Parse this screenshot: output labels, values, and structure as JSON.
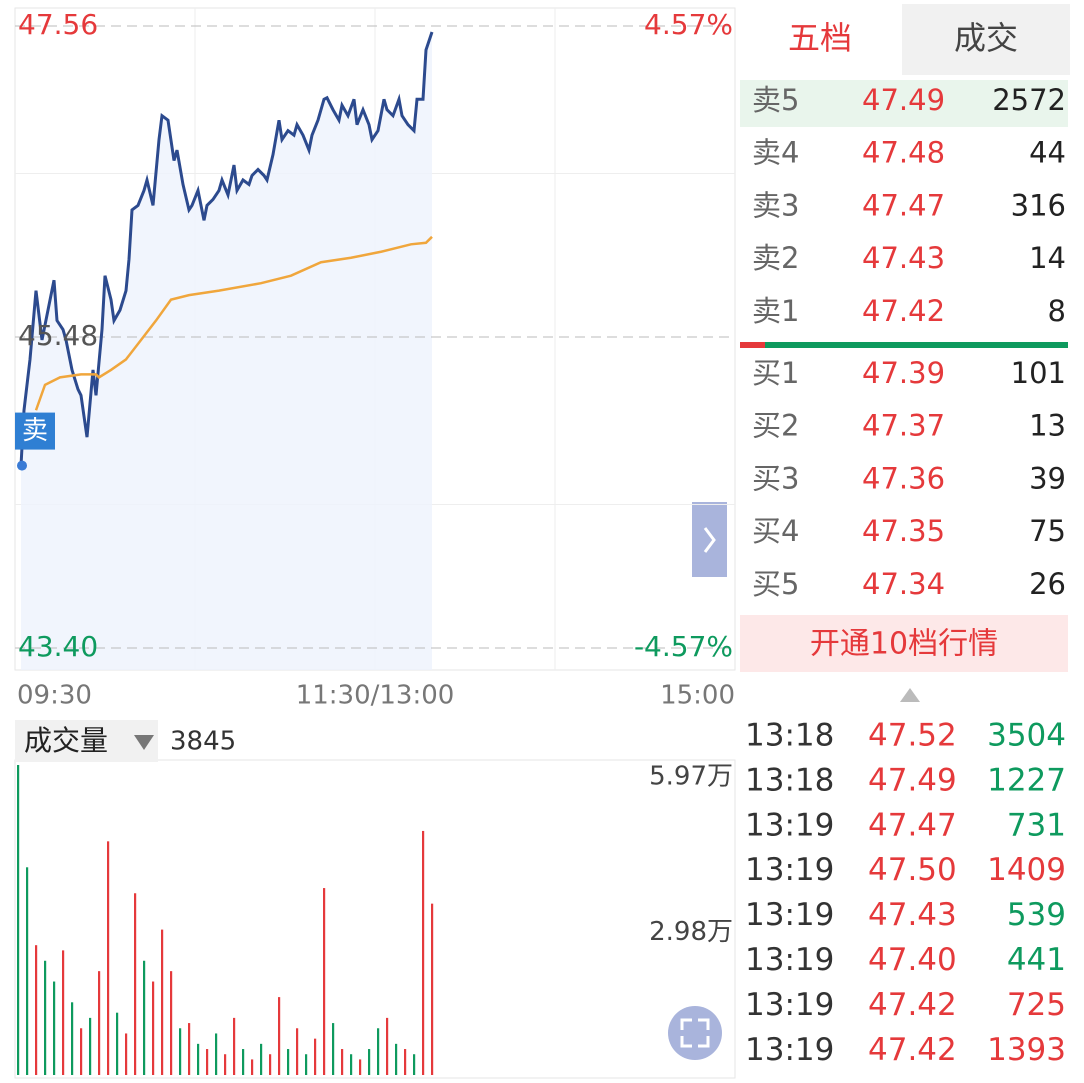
{
  "chart_data": [
    {
      "type": "line",
      "xlim": [
        0,
        240
      ],
      "xticks": [
        {
          "value": 0,
          "label": "09:30"
        },
        {
          "value": 120,
          "label": "11:30/13:00"
        },
        {
          "value": 240,
          "label": "15:00"
        }
      ],
      "ylim": [
        43.4,
        47.56
      ],
      "yticks": [
        47.56,
        45.48,
        {
          "value": 43.4,
          "label": "43.40"
        }
      ],
      "y2lim": [
        -4.57,
        4.57
      ],
      "y2ticks": [
        {
          "value": 4.57,
          "label": "4.57%"
        },
        {
          "value": -4.57,
          "label": "-4.57%"
        }
      ],
      "marker_label": "卖",
      "series": [
        {
          "color": "#2c4a8e",
          "x": [
            2,
            3,
            5,
            7,
            9,
            11,
            13,
            14,
            16,
            17,
            19,
            21,
            22,
            24,
            26,
            27,
            29,
            30,
            32,
            33,
            35,
            37,
            38,
            39,
            41,
            43,
            44,
            46,
            48,
            49,
            51,
            53,
            54,
            56,
            58,
            59,
            61,
            63,
            64,
            66,
            68,
            69,
            71,
            73,
            74,
            76,
            78,
            79,
            81,
            83,
            84,
            86,
            88,
            89,
            91,
            93,
            94,
            96,
            98,
            99,
            101,
            103,
            104,
            106,
            108,
            109,
            111,
            113,
            114,
            116,
            118,
            119,
            121,
            123,
            124,
            126,
            128,
            129,
            131,
            133,
            134,
            136,
            137,
            139
          ],
          "values": [
            44.62,
            44.99,
            45.33,
            45.79,
            45.46,
            45.66,
            45.86,
            45.59,
            45.53,
            45.46,
            45.26,
            45.13,
            45.09,
            44.81,
            45.26,
            45.09,
            45.53,
            45.89,
            45.73,
            45.59,
            45.66,
            45.79,
            46.0,
            46.33,
            46.36,
            46.46,
            46.53,
            46.36,
            46.8,
            46.96,
            46.93,
            46.66,
            46.73,
            46.5,
            46.33,
            46.36,
            46.46,
            46.26,
            46.36,
            46.4,
            46.46,
            46.53,
            46.43,
            46.63,
            46.46,
            46.53,
            46.5,
            46.56,
            46.6,
            46.56,
            46.53,
            46.7,
            46.93,
            46.8,
            46.86,
            46.83,
            46.9,
            46.83,
            46.73,
            46.83,
            46.93,
            47.07,
            47.08,
            47.0,
            46.93,
            47.03,
            46.96,
            47.07,
            46.9,
            47.0,
            46.9,
            46.8,
            46.86,
            47.07,
            47.0,
            46.96,
            47.07,
            46.96,
            46.9,
            46.86,
            47.07,
            47.07,
            47.4,
            47.52
          ]
        },
        {
          "color": "#f0a63c",
          "x": [
            7,
            10,
            15,
            22,
            27,
            28,
            32,
            37,
            42,
            47,
            52,
            58,
            68,
            82,
            92,
            102,
            112,
            122,
            132,
            137,
            139
          ],
          "values": [
            44.99,
            45.16,
            45.21,
            45.23,
            45.23,
            45.21,
            45.26,
            45.33,
            45.46,
            45.59,
            45.73,
            45.76,
            45.79,
            45.84,
            45.89,
            45.98,
            46.01,
            46.05,
            46.1,
            46.11,
            46.15
          ]
        }
      ]
    },
    {
      "type": "bar",
      "label": "成交量",
      "current": 3845,
      "xlim": [
        0,
        240
      ],
      "ylim": [
        0,
        59700
      ],
      "yticks": [
        {
          "value": 59700,
          "label": "5.97万"
        },
        {
          "value": 29800,
          "label": "2.98万"
        }
      ],
      "x": [
        0,
        3,
        6,
        9,
        12,
        15,
        18,
        21,
        24,
        27,
        30,
        33,
        36,
        39,
        42,
        45,
        48,
        51,
        54,
        57,
        60,
        63,
        66,
        69,
        72,
        75,
        78,
        81,
        84,
        87,
        90,
        93,
        96,
        99,
        102,
        105,
        108,
        111,
        114,
        117,
        120,
        123,
        126,
        129,
        132,
        135,
        138
      ],
      "values": [
        59700,
        40000,
        25000,
        22000,
        18000,
        24000,
        14000,
        9000,
        11000,
        20000,
        45000,
        12000,
        8000,
        35000,
        22000,
        18000,
        28000,
        20000,
        9000,
        10000,
        6000,
        5000,
        8000,
        4000,
        11000,
        5000,
        3000,
        6000,
        4000,
        15000,
        5000,
        9000,
        4000,
        7000,
        36000,
        10000,
        5000,
        4000,
        3000,
        5000,
        9000,
        11000,
        6000,
        5000,
        4000,
        47000,
        33000
      ],
      "colors": [
        "#0e9a5e",
        "#0e9a5e",
        "#e5393b",
        "#0e9a5e",
        "#0e9a5e",
        "#e5393b",
        "#0e9a5e",
        "#e5393b",
        "#0e9a5e",
        "#e5393b",
        "#e5393b",
        "#0e9a5e",
        "#e5393b",
        "#e5393b",
        "#0e9a5e",
        "#e5393b",
        "#e5393b",
        "#e5393b",
        "#0e9a5e",
        "#e5393b",
        "#0e9a5e",
        "#e5393b",
        "#0e9a5e",
        "#e5393b",
        "#e5393b",
        "#0e9a5e",
        "#e5393b",
        "#0e9a5e",
        "#e5393b",
        "#e5393b",
        "#0e9a5e",
        "#e5393b",
        "#0e9a5e",
        "#e5393b",
        "#e5393b",
        "#0e9a5e",
        "#e5393b",
        "#0e9a5e",
        "#e5393b",
        "#0e9a5e",
        "#0e9a5e",
        "#e5393b",
        "#0e9a5e",
        "#e5393b",
        "#0e9a5e",
        "#e5393b",
        "#e5393b"
      ]
    }
  ],
  "order_book": {
    "tabs": [
      "五档",
      "成交"
    ],
    "asks": [
      {
        "label": "卖5",
        "price": "47.49",
        "volume": 2572
      },
      {
        "label": "卖4",
        "price": "47.48",
        "volume": 44
      },
      {
        "label": "卖3",
        "price": "47.47",
        "volume": 316
      },
      {
        "label": "卖2",
        "price": "47.43",
        "volume": 14
      },
      {
        "label": "卖1",
        "price": "47.42",
        "volume": 8
      }
    ],
    "bids": [
      {
        "label": "买1",
        "price": "47.39",
        "volume": 101
      },
      {
        "label": "买2",
        "price": "47.37",
        "volume": 13
      },
      {
        "label": "买3",
        "price": "47.36",
        "volume": 39
      },
      {
        "label": "买4",
        "price": "47.35",
        "volume": 75
      },
      {
        "label": "买5",
        "price": "47.34",
        "volume": 26
      }
    ],
    "upgrade_button": "开通10档行情"
  },
  "trades": [
    {
      "time": "13:18",
      "price": "47.52",
      "volume": 3504,
      "color": "#0e9a5e"
    },
    {
      "time": "13:18",
      "price": "47.49",
      "volume": 1227,
      "color": "#0e9a5e"
    },
    {
      "time": "13:19",
      "price": "47.47",
      "volume": 731,
      "color": "#0e9a5e"
    },
    {
      "time": "13:19",
      "price": "47.50",
      "volume": 1409,
      "color": "#e5393b"
    },
    {
      "time": "13:19",
      "price": "47.43",
      "volume": 539,
      "color": "#0e9a5e"
    },
    {
      "time": "13:19",
      "price": "47.40",
      "volume": 441,
      "color": "#0e9a5e"
    },
    {
      "time": "13:19",
      "price": "47.42",
      "volume": 725,
      "color": "#e5393b"
    },
    {
      "time": "13:19",
      "price": "47.42",
      "volume": 1393,
      "color": "#e5393b"
    }
  ]
}
